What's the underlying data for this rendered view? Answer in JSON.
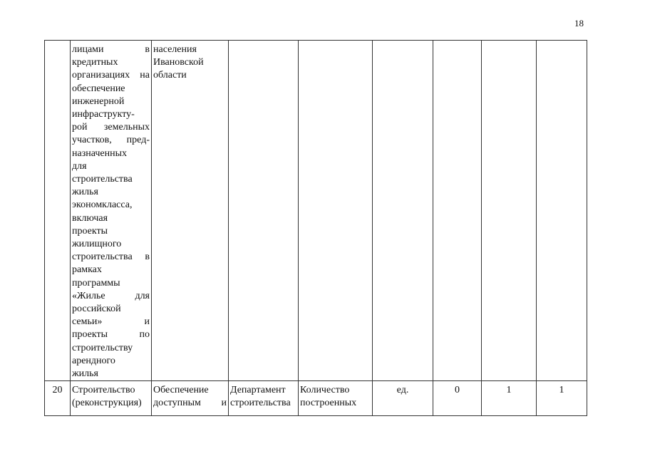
{
  "page_number": "18",
  "rows": [
    {
      "number": "",
      "name_lines": [
        "лицами в",
        "кредитных",
        "организациях на",
        "обеспечение",
        "инженерной",
        "инфраструкту-",
        "рой земельных",
        "участков, пред-",
        "назначенных",
        "для",
        "строительства",
        "жилья",
        "экономкласса,",
        "включая",
        "проекты",
        "жилищного",
        "строительства в",
        "рамках",
        "программы",
        "«Жилье для",
        "российской",
        "семьи» и",
        "проекты по",
        "строительству",
        "арендного",
        "жилья"
      ],
      "goal_lines": [
        "населения",
        "Ивановской",
        "области"
      ],
      "executor_lines": [],
      "indicator_lines": [],
      "unit": "",
      "v1": "",
      "v2": "",
      "v3": ""
    },
    {
      "number": "20",
      "name_lines": [
        "Строительство",
        "(реконструкция)"
      ],
      "goal_lines": [
        "Обеспечение",
        "доступным и"
      ],
      "executor_lines": [
        "Департамент",
        "строительства"
      ],
      "indicator_lines": [
        "Количество",
        "построенных"
      ],
      "unit": "ед.",
      "v1": "0",
      "v2": "1",
      "v3": "1"
    }
  ]
}
